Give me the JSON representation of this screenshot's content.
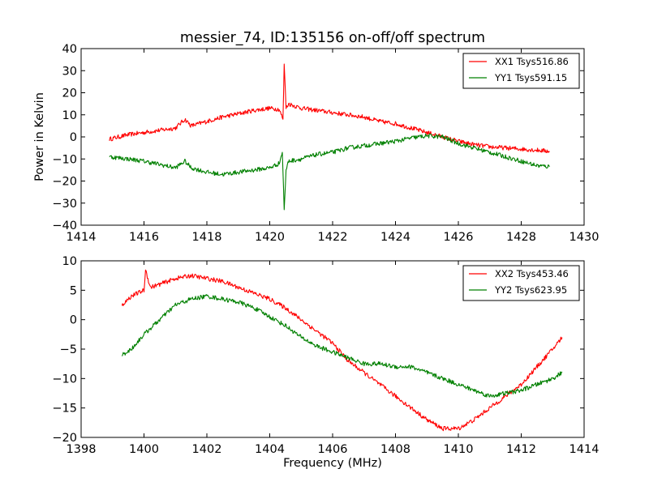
{
  "chart_data": [
    {
      "type": "line",
      "title": "messier_74, ID:135156 on-off/off spectrum",
      "xlabel": "",
      "ylabel": "Power in Kelvin",
      "xlim": [
        1414,
        1430
      ],
      "ylim": [
        -40,
        40
      ],
      "xticks": [
        "1414",
        "1416",
        "1418",
        "1420",
        "1422",
        "1424",
        "1426",
        "1428",
        "1430"
      ],
      "yticks": [
        "40",
        "30",
        "20",
        "10",
        "0",
        "−10",
        "−20",
        "−30",
        "−40"
      ],
      "legend": "top-right",
      "grid": false,
      "series": [
        {
          "name": "XX1 Tsys516.86",
          "color": "#ff0000",
          "points": [
            [
              1414.9,
              -1
            ],
            [
              1415.5,
              1
            ],
            [
              1416,
              2
            ],
            [
              1416.5,
              3
            ],
            [
              1417,
              4
            ],
            [
              1417.3,
              8
            ],
            [
              1417.5,
              5
            ],
            [
              1418,
              7
            ],
            [
              1418.5,
              9
            ],
            [
              1419,
              10.5
            ],
            [
              1419.5,
              12
            ],
            [
              1420,
              13
            ],
            [
              1420.3,
              12.5
            ],
            [
              1420.42,
              8
            ],
            [
              1420.46,
              33
            ],
            [
              1420.52,
              13
            ],
            [
              1420.6,
              15
            ],
            [
              1421,
              13
            ],
            [
              1421.5,
              12
            ],
            [
              1422,
              11
            ],
            [
              1422.5,
              10
            ],
            [
              1423,
              9
            ],
            [
              1423.5,
              7
            ],
            [
              1424,
              6
            ],
            [
              1424.5,
              4
            ],
            [
              1425,
              2
            ],
            [
              1425.5,
              0
            ],
            [
              1426,
              -2
            ],
            [
              1426.5,
              -3.5
            ],
            [
              1427,
              -4.5
            ],
            [
              1427.5,
              -5
            ],
            [
              1428,
              -5.5
            ],
            [
              1428.5,
              -6
            ],
            [
              1428.9,
              -6.5
            ]
          ]
        },
        {
          "name": "YY1 Tsys591.15",
          "color": "#008000",
          "points": [
            [
              1414.9,
              -9
            ],
            [
              1415.5,
              -10
            ],
            [
              1416,
              -11
            ],
            [
              1416.5,
              -12.5
            ],
            [
              1417,
              -14
            ],
            [
              1417.3,
              -11
            ],
            [
              1417.5,
              -14
            ],
            [
              1418,
              -16
            ],
            [
              1418.5,
              -17
            ],
            [
              1419,
              -16
            ],
            [
              1419.5,
              -15
            ],
            [
              1420,
              -14
            ],
            [
              1420.3,
              -12
            ],
            [
              1420.4,
              -7
            ],
            [
              1420.46,
              -33
            ],
            [
              1420.52,
              -15
            ],
            [
              1420.6,
              -11
            ],
            [
              1421,
              -10
            ],
            [
              1421.5,
              -8
            ],
            [
              1422,
              -7
            ],
            [
              1422.5,
              -5
            ],
            [
              1423,
              -4
            ],
            [
              1423.5,
              -3
            ],
            [
              1424,
              -2
            ],
            [
              1424.5,
              -0.5
            ],
            [
              1425,
              0.5
            ],
            [
              1425.5,
              0
            ],
            [
              1426,
              -3
            ],
            [
              1426.5,
              -5
            ],
            [
              1427,
              -7
            ],
            [
              1427.5,
              -9
            ],
            [
              1428,
              -11
            ],
            [
              1428.5,
              -13
            ],
            [
              1428.9,
              -13.5
            ]
          ]
        }
      ]
    },
    {
      "type": "line",
      "title": "",
      "xlabel": "Frequency (MHz)",
      "ylabel": "",
      "xlim": [
        1398,
        1414
      ],
      "ylim": [
        -20,
        10
      ],
      "xticks": [
        "1398",
        "1400",
        "1402",
        "1404",
        "1406",
        "1408",
        "1410",
        "1412",
        "1414"
      ],
      "yticks": [
        "10",
        "5",
        "0",
        "−5",
        "−10",
        "−15",
        "−20"
      ],
      "legend": "top-right",
      "grid": false,
      "series": [
        {
          "name": "XX2 Tsys453.46",
          "color": "#ff0000",
          "points": [
            [
              1399.3,
              2.5
            ],
            [
              1399.6,
              4
            ],
            [
              1400,
              5
            ],
            [
              1400.05,
              8.5
            ],
            [
              1400.2,
              5.5
            ],
            [
              1400.5,
              6
            ],
            [
              1401,
              7
            ],
            [
              1401.5,
              7.5
            ],
            [
              1402,
              7
            ],
            [
              1402.5,
              6.5
            ],
            [
              1403,
              5.5
            ],
            [
              1403.5,
              4.5
            ],
            [
              1404,
              3.5
            ],
            [
              1404.5,
              2
            ],
            [
              1405,
              0
            ],
            [
              1405.5,
              -2
            ],
            [
              1406,
              -4
            ],
            [
              1406.5,
              -7
            ],
            [
              1407,
              -9
            ],
            [
              1407.5,
              -11
            ],
            [
              1408,
              -13
            ],
            [
              1408.5,
              -15
            ],
            [
              1409,
              -17
            ],
            [
              1409.5,
              -18.5
            ],
            [
              1410,
              -18.5
            ],
            [
              1410.5,
              -17
            ],
            [
              1411,
              -15
            ],
            [
              1411.5,
              -13
            ],
            [
              1412,
              -11
            ],
            [
              1412.5,
              -8
            ],
            [
              1413,
              -5
            ],
            [
              1413.3,
              -3
            ]
          ]
        },
        {
          "name": "YY2 Tsys623.95",
          "color": "#008000",
          "points": [
            [
              1399.3,
              -6
            ],
            [
              1399.6,
              -5
            ],
            [
              1400,
              -2.5
            ],
            [
              1400.5,
              0
            ],
            [
              1401,
              2.5
            ],
            [
              1401.5,
              3.5
            ],
            [
              1402,
              4
            ],
            [
              1402.5,
              3.5
            ],
            [
              1403,
              3
            ],
            [
              1403.5,
              2
            ],
            [
              1404,
              0.5
            ],
            [
              1404.5,
              -1
            ],
            [
              1405,
              -3
            ],
            [
              1405.5,
              -4.5
            ],
            [
              1406,
              -5.5
            ],
            [
              1406.5,
              -6.5
            ],
            [
              1407,
              -7.5
            ],
            [
              1407.5,
              -7.5
            ],
            [
              1408,
              -8
            ],
            [
              1408.5,
              -8
            ],
            [
              1409,
              -9
            ],
            [
              1409.5,
              -10
            ],
            [
              1410,
              -11
            ],
            [
              1410.5,
              -12
            ],
            [
              1411,
              -13
            ],
            [
              1411.5,
              -12.5
            ],
            [
              1412,
              -12
            ],
            [
              1412.5,
              -11
            ],
            [
              1413,
              -10
            ],
            [
              1413.3,
              -9
            ]
          ]
        }
      ]
    }
  ]
}
